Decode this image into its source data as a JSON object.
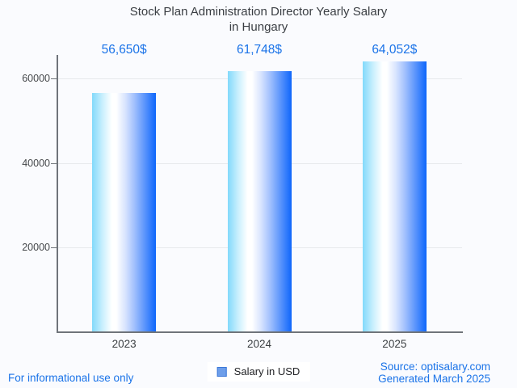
{
  "chart_data": {
    "type": "bar",
    "title": "Stock Plan Administration Director Yearly Salary in Hungary",
    "title_line1": "Stock Plan Administration Director Yearly Salary",
    "title_line2": "in Hungary",
    "categories": [
      "2023",
      "2024",
      "2025"
    ],
    "series": [
      {
        "name": "Salary in USD",
        "values": [
          56650,
          61748,
          64052
        ]
      }
    ],
    "value_labels": [
      "56,650$",
      "61,748$",
      "64,052$"
    ],
    "yticks": [
      20000,
      40000,
      60000
    ],
    "ytick_labels": [
      "20000",
      "40000",
      "60000"
    ],
    "ylim": [
      0,
      65500
    ],
    "xlabel": "",
    "ylabel": "",
    "grid": true,
    "legend_position": "bottom-center"
  },
  "legend": {
    "label": "Salary in USD",
    "swatch_color": "#6d9eea"
  },
  "footer": {
    "disclaimer": "For informational use only",
    "source": "Source: optisalary.com",
    "generated": "Generated March 2025"
  },
  "colors": {
    "accent_blue": "#1a73e8",
    "bar_gradient_left": "#82d9fb",
    "bar_gradient_mid": "#ffffff",
    "bar_gradient_right": "#0e66fb",
    "title_text": "#3a3e43",
    "axis_text": "#44474a",
    "gridline": "#e7e9ec",
    "axis_line": "#6f747a",
    "background": "#fafbfe"
  }
}
